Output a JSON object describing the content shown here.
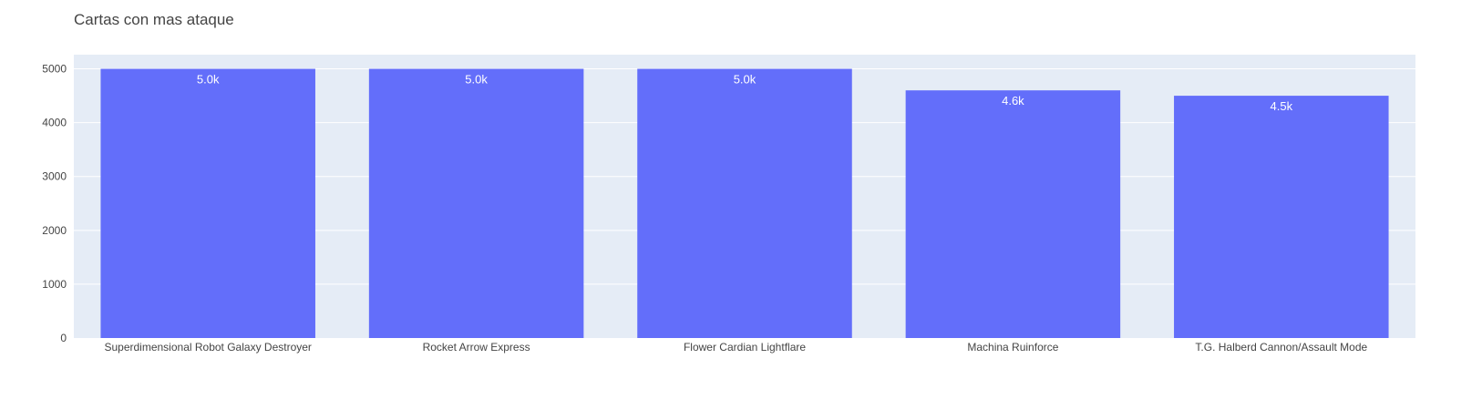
{
  "chart_data": {
    "type": "bar",
    "title": "Cartas con mas ataque",
    "xlabel": "",
    "ylabel": "",
    "categories": [
      "Superdimensional Robot Galaxy Destroyer",
      "Rocket Arrow Express",
      "Flower Cardian Lightflare",
      "Machina Ruinforce",
      "T.G. Halberd Cannon/Assault Mode"
    ],
    "values": [
      5000,
      5000,
      5000,
      4600,
      4500
    ],
    "data_labels": [
      "5.0k",
      "5.0k",
      "5.0k",
      "4.6k",
      "4.5k"
    ],
    "ylim": [
      0,
      5263
    ],
    "yticks": [
      0,
      1000,
      2000,
      3000,
      4000,
      5000
    ],
    "grid": true,
    "bar_color": "#636efa",
    "plot_background": "#e5ecf6"
  }
}
